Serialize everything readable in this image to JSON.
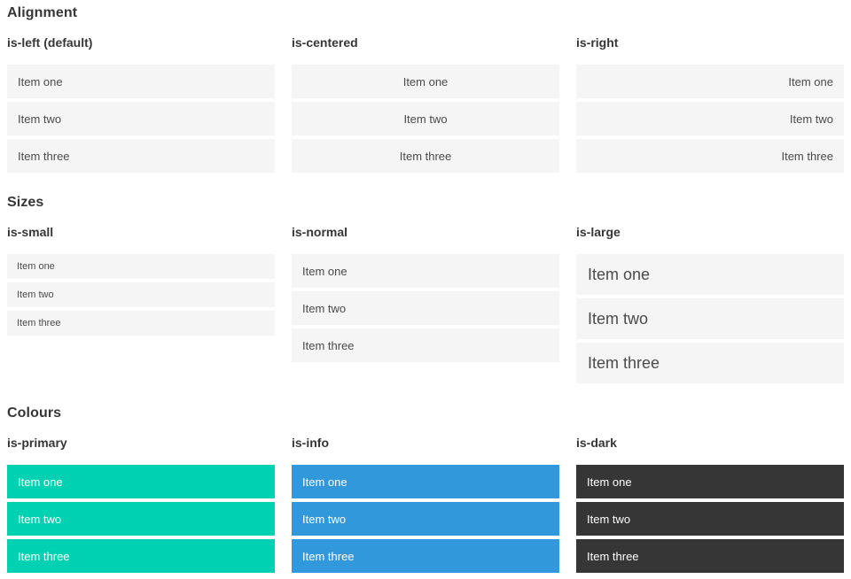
{
  "sections": [
    {
      "title": "Alignment",
      "groups": [
        {
          "label": "is-left (default)",
          "modifier": "left",
          "items": [
            "Item one",
            "Item two",
            "Item three"
          ]
        },
        {
          "label": "is-centered",
          "modifier": "centered",
          "items": [
            "Item one",
            "Item two",
            "Item three"
          ]
        },
        {
          "label": "is-right",
          "modifier": "right",
          "items": [
            "Item one",
            "Item two",
            "Item three"
          ]
        }
      ]
    },
    {
      "title": "Sizes",
      "groups": [
        {
          "label": "is-small",
          "modifier": "small",
          "items": [
            "Item one",
            "Item two",
            "Item three"
          ]
        },
        {
          "label": "is-normal",
          "modifier": "normal",
          "items": [
            "Item one",
            "Item two",
            "Item three"
          ]
        },
        {
          "label": "is-large",
          "modifier": "large",
          "items": [
            "Item one",
            "Item two",
            "Item three"
          ]
        }
      ]
    },
    {
      "title": "Colours",
      "groups": [
        {
          "label": "is-primary",
          "modifier": "primary",
          "items": [
            "Item one",
            "Item two",
            "Item three"
          ]
        },
        {
          "label": "is-info",
          "modifier": "info",
          "items": [
            "Item one",
            "Item two",
            "Item three"
          ]
        },
        {
          "label": "is-dark",
          "modifier": "dark",
          "items": [
            "Item one",
            "Item two",
            "Item three"
          ]
        }
      ]
    }
  ],
  "colors": {
    "primary": "#00d1b2",
    "info": "#3298dc",
    "dark": "#363636",
    "item_background": "#f5f5f5",
    "item_text": "#4a4a4a",
    "item_text_inverted": "#ffffff",
    "heading_text": "#363636",
    "page_background": "#ffffff"
  }
}
